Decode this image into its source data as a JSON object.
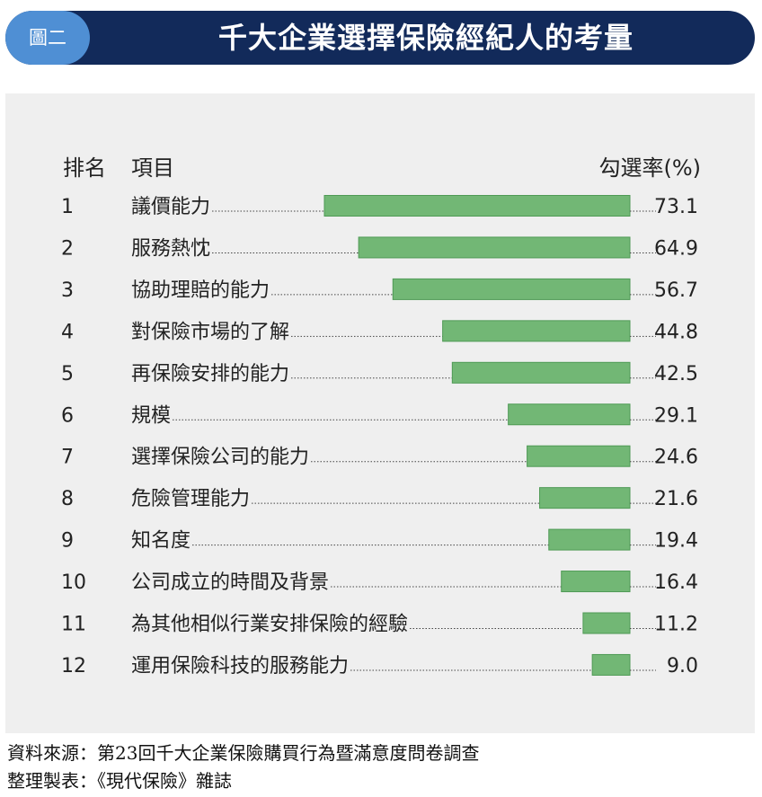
{
  "header": {
    "figure_label": "圖二",
    "title": "千大企業選擇保險經紀人的考量"
  },
  "columns": {
    "rank": "排名",
    "item": "項目",
    "rate": "勾選率(%)"
  },
  "chart_data": {
    "type": "bar",
    "orientation": "horizontal",
    "title": "千大企業選擇保險經紀人的考量",
    "ranks": [
      "1",
      "2",
      "3",
      "4",
      "5",
      "6",
      "7",
      "8",
      "9",
      "10",
      "11",
      "12"
    ],
    "categories": [
      "議價能力",
      "服務熱忱",
      "協助理賠的能力",
      "對保險市場的了解",
      "再保險安排的能力",
      "規模",
      "選擇保險公司的能力",
      "危險管理能力",
      "知名度",
      "公司成立的時間及背景",
      "為其他相似行業安排保險的經驗",
      "運用保險科技的服務能力"
    ],
    "values": [
      73.1,
      64.9,
      56.7,
      44.8,
      42.5,
      29.1,
      24.6,
      21.6,
      19.4,
      16.4,
      11.2,
      9.0
    ],
    "value_labels": [
      "73.1",
      "64.9",
      "56.7",
      "44.8",
      "42.5",
      "29.1",
      "24.6",
      "21.6",
      "19.4",
      "16.4",
      "11.2",
      "9.0"
    ],
    "xlim": [
      0,
      73.1
    ],
    "bar_color": "#72b775",
    "grid": false,
    "legend": "none"
  },
  "footer": {
    "source": "資料來源：第23回千大企業保險購買行為暨滿意度問卷調查",
    "compiled": "整理製表：《現代保險》雜誌"
  }
}
